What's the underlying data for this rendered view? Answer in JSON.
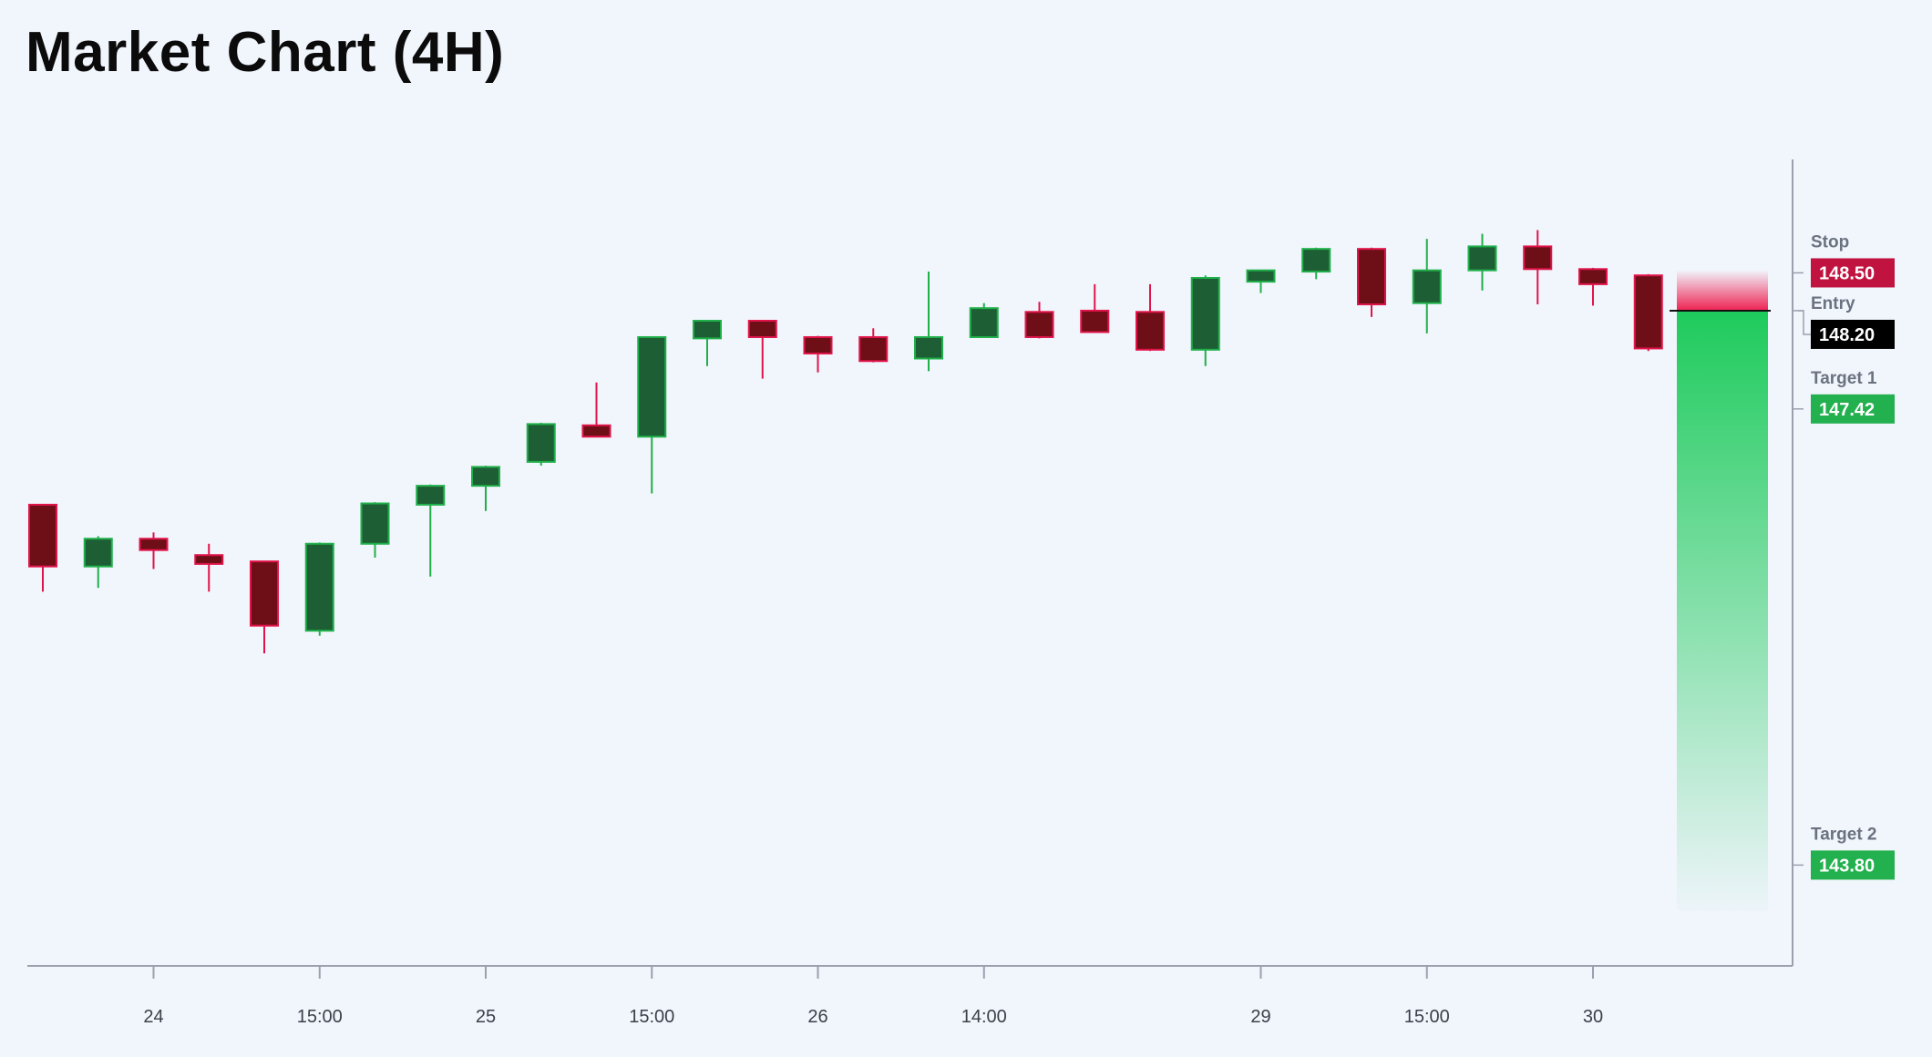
{
  "title": "Market Chart (4H)",
  "chart_data": {
    "type": "candlestick",
    "ylim": [
      143.0,
      149.4
    ],
    "x_ticks": [
      {
        "index": 2,
        "label": "24"
      },
      {
        "index": 5,
        "label": "15:00"
      },
      {
        "index": 8,
        "label": "25"
      },
      {
        "index": 11,
        "label": "15:00"
      },
      {
        "index": 14,
        "label": "26"
      },
      {
        "index": 17,
        "label": "14:00"
      },
      {
        "index": 22,
        "label": "29"
      },
      {
        "index": 25,
        "label": "15:00"
      },
      {
        "index": 28,
        "label": "30"
      }
    ],
    "candles": [
      {
        "o": 146.66,
        "h": 146.66,
        "l": 145.97,
        "c": 146.17
      },
      {
        "o": 146.17,
        "h": 146.41,
        "l": 146.0,
        "c": 146.39
      },
      {
        "o": 146.39,
        "h": 146.44,
        "l": 146.15,
        "c": 146.3
      },
      {
        "o": 146.26,
        "h": 146.35,
        "l": 145.97,
        "c": 146.19
      },
      {
        "o": 146.21,
        "h": 146.21,
        "l": 145.48,
        "c": 145.7
      },
      {
        "o": 145.66,
        "h": 146.36,
        "l": 145.62,
        "c": 146.35
      },
      {
        "o": 146.35,
        "h": 146.68,
        "l": 146.24,
        "c": 146.67
      },
      {
        "o": 146.66,
        "h": 146.82,
        "l": 146.09,
        "c": 146.81
      },
      {
        "o": 146.81,
        "h": 146.97,
        "l": 146.61,
        "c": 146.96
      },
      {
        "o": 147.0,
        "h": 147.31,
        "l": 146.97,
        "c": 147.3
      },
      {
        "o": 147.29,
        "h": 147.63,
        "l": 147.2,
        "c": 147.2
      },
      {
        "o": 147.2,
        "h": 147.99,
        "l": 146.75,
        "c": 147.99
      },
      {
        "o": 147.98,
        "h": 148.11,
        "l": 147.76,
        "c": 148.12
      },
      {
        "o": 148.12,
        "h": 148.09,
        "l": 147.66,
        "c": 147.99
      },
      {
        "o": 147.99,
        "h": 148.0,
        "l": 147.71,
        "c": 147.86
      },
      {
        "o": 147.99,
        "h": 148.06,
        "l": 147.79,
        "c": 147.8
      },
      {
        "o": 147.82,
        "h": 148.51,
        "l": 147.72,
        "c": 147.99
      },
      {
        "o": 147.99,
        "h": 148.26,
        "l": 148.01,
        "c": 148.22
      },
      {
        "o": 148.19,
        "h": 148.27,
        "l": 147.98,
        "c": 147.99
      },
      {
        "o": 148.2,
        "h": 148.41,
        "l": 148.04,
        "c": 148.03
      },
      {
        "o": 148.19,
        "h": 148.41,
        "l": 147.88,
        "c": 147.89
      },
      {
        "o": 147.89,
        "h": 148.48,
        "l": 147.76,
        "c": 148.46
      },
      {
        "o": 148.43,
        "h": 148.52,
        "l": 148.34,
        "c": 148.52
      },
      {
        "o": 148.51,
        "h": 148.7,
        "l": 148.45,
        "c": 148.69
      },
      {
        "o": 148.69,
        "h": 148.7,
        "l": 148.15,
        "c": 148.25
      },
      {
        "o": 148.26,
        "h": 148.77,
        "l": 148.02,
        "c": 148.52
      },
      {
        "o": 148.52,
        "h": 148.81,
        "l": 148.36,
        "c": 148.71
      },
      {
        "o": 148.71,
        "h": 148.84,
        "l": 148.25,
        "c": 148.53
      },
      {
        "o": 148.53,
        "h": 148.54,
        "l": 148.24,
        "c": 148.41
      },
      {
        "o": 148.48,
        "h": 148.49,
        "l": 147.88,
        "c": 147.9
      }
    ],
    "levels": [
      {
        "name": "Stop",
        "value": 148.5,
        "color": "#c0133f"
      },
      {
        "name": "Entry",
        "value": 148.2,
        "color": "#000000"
      },
      {
        "name": "Target 1",
        "value": 147.42,
        "color": "#23b04e"
      },
      {
        "name": "Target 2",
        "value": 143.8,
        "color": "#23b04e"
      }
    ],
    "grid": false,
    "colors": {
      "up_fill": "#1e5e34",
      "up_stroke": "#1fb04a",
      "down_fill": "#6e0f17",
      "down_stroke": "#e0144a",
      "risk_zone": "#ee2352",
      "reward_zone": "#1ecb5c",
      "axis": "#9aa1ad"
    }
  }
}
